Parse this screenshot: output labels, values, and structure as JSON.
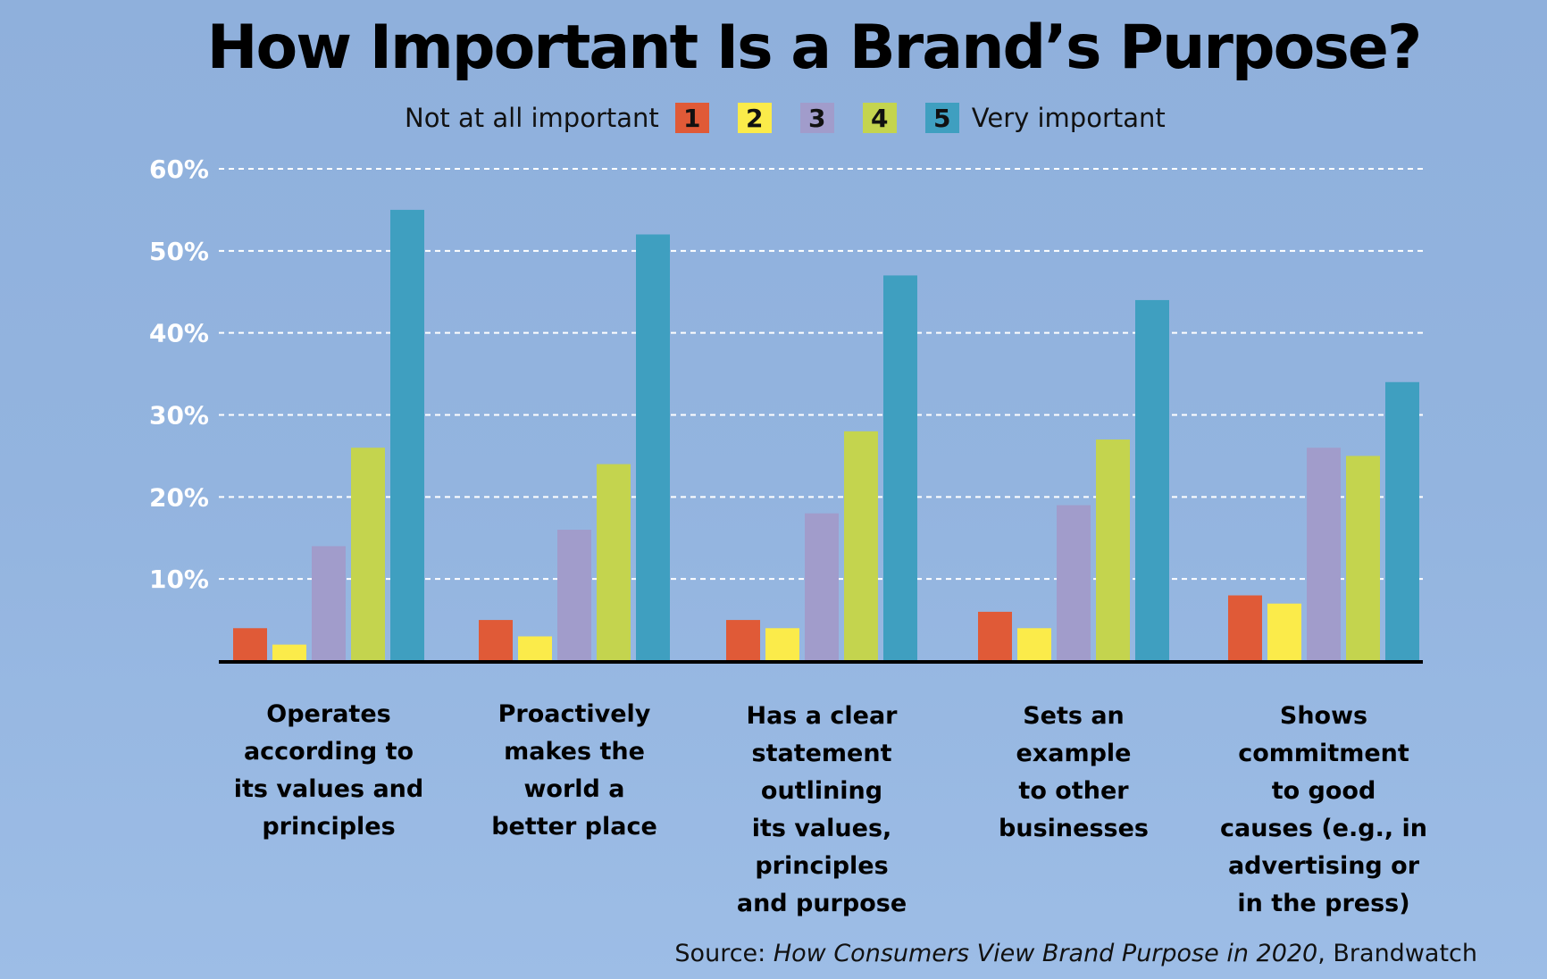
{
  "chart_data": {
    "type": "bar",
    "title": "How Important Is a Brand’s Purpose?",
    "legend_low": "Not at all important",
    "legend_high": "Very important",
    "categories": [
      "Operates according to its values and principles",
      "Proactively makes the world a better place",
      "Has a clear statement outlining its values, principles and purpose",
      "Sets an example to other businesses",
      "Shows commitment to good causes (e.g., in advertising or in the press)"
    ],
    "category_lines": [
      [
        "Operates",
        "according to",
        "its values and",
        "principles"
      ],
      [
        "Proactively",
        "makes the",
        "world a",
        "better place"
      ],
      [
        "Has a clear",
        "statement",
        "outlining",
        "its values,",
        "principles",
        "and purpose"
      ],
      [
        "Sets an",
        "example",
        "to other",
        "businesses"
      ],
      [
        "Shows",
        "commitment",
        "to good",
        "causes (e.g., in",
        "advertising or",
        "in the press)"
      ]
    ],
    "series": [
      {
        "name": "1",
        "color": "#e05a37",
        "values": [
          4,
          5,
          5,
          6,
          8
        ]
      },
      {
        "name": "2",
        "color": "#fbeb4a",
        "values": [
          2,
          3,
          4,
          4,
          7
        ]
      },
      {
        "name": "3",
        "color": "#a19ccb",
        "values": [
          14,
          16,
          18,
          19,
          26
        ]
      },
      {
        "name": "4",
        "color": "#c4d44e",
        "values": [
          26,
          24,
          28,
          27,
          25
        ]
      },
      {
        "name": "5",
        "color": "#3f9fc0",
        "values": [
          55,
          52,
          47,
          44,
          34
        ]
      }
    ],
    "yticks": [
      "10%",
      "20%",
      "30%",
      "40%",
      "50%",
      "60%"
    ],
    "ylim": [
      0,
      60
    ],
    "grid": true,
    "legend_position": "top-center"
  },
  "source_prefix": "Source: ",
  "source_title": "How Consumers View Brand Purpose in 2020",
  "source_suffix": ", Brandwatch"
}
